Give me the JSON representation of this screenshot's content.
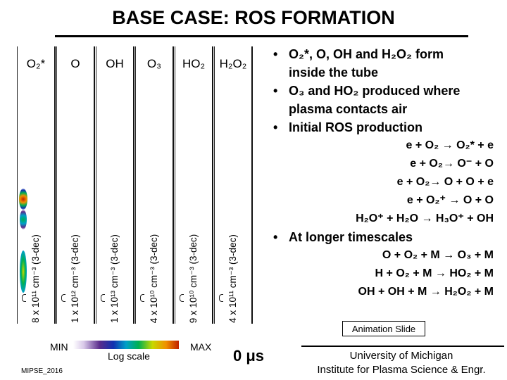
{
  "slide": {
    "title": "BASE CASE: ROS FORMATION"
  },
  "panels": [
    {
      "species": "O₂*",
      "scale": "8 x 10¹¹ cm⁻³ (3-dec)"
    },
    {
      "species": "O",
      "scale": "1 x 10¹² cm⁻³ (3-dec)"
    },
    {
      "species": "OH",
      "scale": "1 x 10¹³ cm⁻³ (3-dec)"
    },
    {
      "species": "O₃",
      "scale": "4 x 10¹⁰ cm⁻³ (3-dec)"
    },
    {
      "species": "HO₂",
      "scale": "9 x 10¹⁰ cm⁻³ (3-dec)"
    },
    {
      "species": "H₂O₂",
      "scale": "4 x 10¹¹ cm⁻³ (3-dec)"
    }
  ],
  "bullets": {
    "b1_line1": "O₂*, O, OH and H₂O₂ form",
    "b1_line2": "inside the tube",
    "b2_line1": "O₃ and HO₂ produced where",
    "b2_line2": "plasma contacts air",
    "b3": "Initial ROS production",
    "initial_reactions": [
      "e + O₂ → O₂* + e",
      "e + O₂→ O⁻ + O",
      "e + O₂→ O + O + e",
      "e + O₂⁺ → O + O",
      "H₂O⁺ + H₂O → H₃O⁺ + OH"
    ],
    "b4": "At longer timescales",
    "later_reactions": [
      "O + O₂ + M → O₃ + M",
      "H + O₂ + M → HO₂ + M",
      "OH + OH + M → H₂O₂ + M"
    ]
  },
  "legend": {
    "min_label": "MIN",
    "max_label": "MAX",
    "scale_label": "Log scale",
    "colors": [
      "#ffffff",
      "#5a2c8c",
      "#1030b0",
      "#00a0c8",
      "#00b050",
      "#c8d800",
      "#f09000",
      "#c02000"
    ]
  },
  "time_label": "0 μs",
  "animation_label": "Animation Slide",
  "footer": {
    "mipse": "MIPSE_2016",
    "affiliation_line1": "University of Michigan",
    "affiliation_line2": "Institute for Plasma Science & Engr."
  }
}
